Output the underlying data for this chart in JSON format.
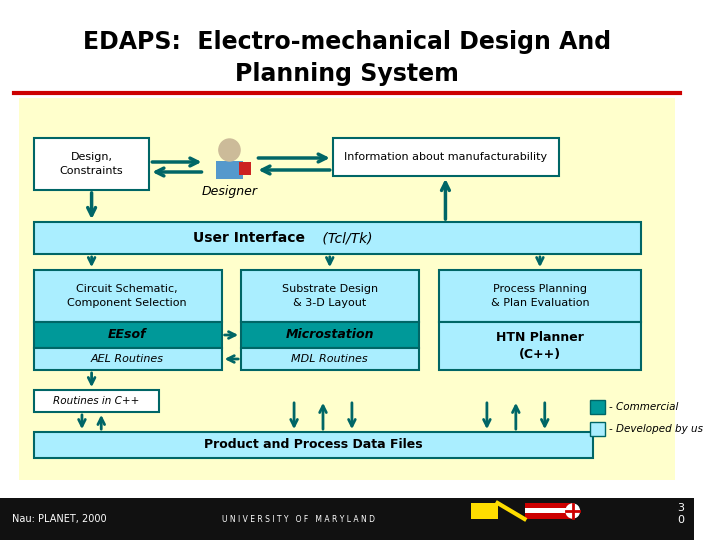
{
  "title_line1": "EDAPS:  Electro-mechanical Design And",
  "title_line2": "Planning System",
  "bg_color": "#ffffff",
  "diagram_bg": "#ffffcc",
  "light_cyan": "#aaeeff",
  "teal": "#009999",
  "arrow_color": "#006666",
  "box_white": "#ffffff",
  "footer_bg": "#111111",
  "red_line_color": "#cc0000",
  "footer_text": "Nau: PLANET, 2000",
  "slide_number": "3\n0"
}
